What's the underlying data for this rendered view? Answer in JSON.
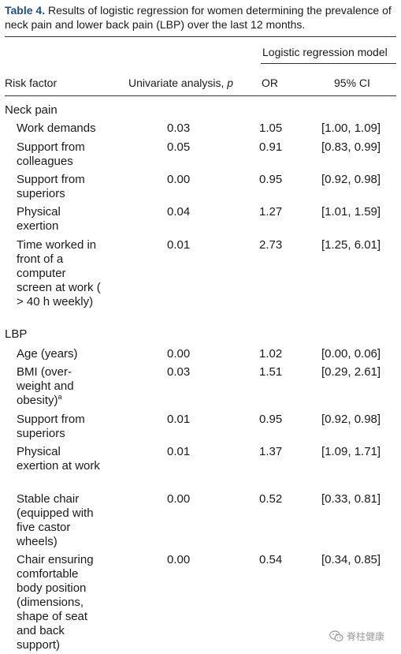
{
  "caption": {
    "label": "Table 4.",
    "text": " Results of logistic regression for women determining the prevalence of neck pain and lower back pain (LBP) over the last 12 months."
  },
  "header": {
    "group_label": "Logistic regression model",
    "col_risk": "Risk factor",
    "col_univariate": "Univariate analysis, p",
    "col_or": "OR",
    "col_ci": "95% CI"
  },
  "sections": [
    {
      "title": "Neck pain",
      "rows": [
        {
          "factor": "Work demands",
          "p": "0.03",
          "or": "1.05",
          "ci": "[1.00, 1.09]"
        },
        {
          "factor": "Support from colleagues",
          "p": "0.05",
          "or": "0.91",
          "ci": "[0.83, 0.99]"
        },
        {
          "factor": "Support from superiors",
          "p": "0.00",
          "or": "0.95",
          "ci": "[0.92, 0.98]"
        },
        {
          "factor": "Physical exertion",
          "p": "0.04",
          "or": "1.27",
          "ci": "[1.01, 1.59]"
        },
        {
          "factor": "Time worked in front of a computer screen at work ( > 40 h weekly)",
          "p": "0.01",
          "or": "2.73",
          "ci": "[1.25, 6.01]"
        }
      ]
    },
    {
      "title": "LBP",
      "rows": [
        {
          "factor": "Age (years)",
          "p": "0.00",
          "or": "1.02",
          "ci": "[0.00, 0.06]"
        },
        {
          "factor": "BMI (over-weight and obesity)",
          "sup": "a",
          "p": "0.03",
          "or": "1.51",
          "ci": "[0.29, 2.61]"
        },
        {
          "factor": "Support from superiors",
          "p": "0.01",
          "or": "0.95",
          "ci": "[0.92, 0.98]"
        },
        {
          "factor": "Physical exertion at work",
          "p": "0.01",
          "or": "1.37",
          "ci": "[1.09, 1.71]"
        },
        {
          "factor": "Stable chair (equipped with five castor wheels)",
          "p": "0.00",
          "or": "0.52",
          "ci": "[0.33, 0.81]"
        },
        {
          "factor": "Chair ensuring comfortable body position (dimensions, shape of seat and back support)",
          "p": "0.00",
          "or": "0.54",
          "ci": "[0.34, 0.85]"
        }
      ]
    }
  ],
  "watermark": {
    "text": "脊柱健康",
    "icon": "wechat-icon"
  }
}
